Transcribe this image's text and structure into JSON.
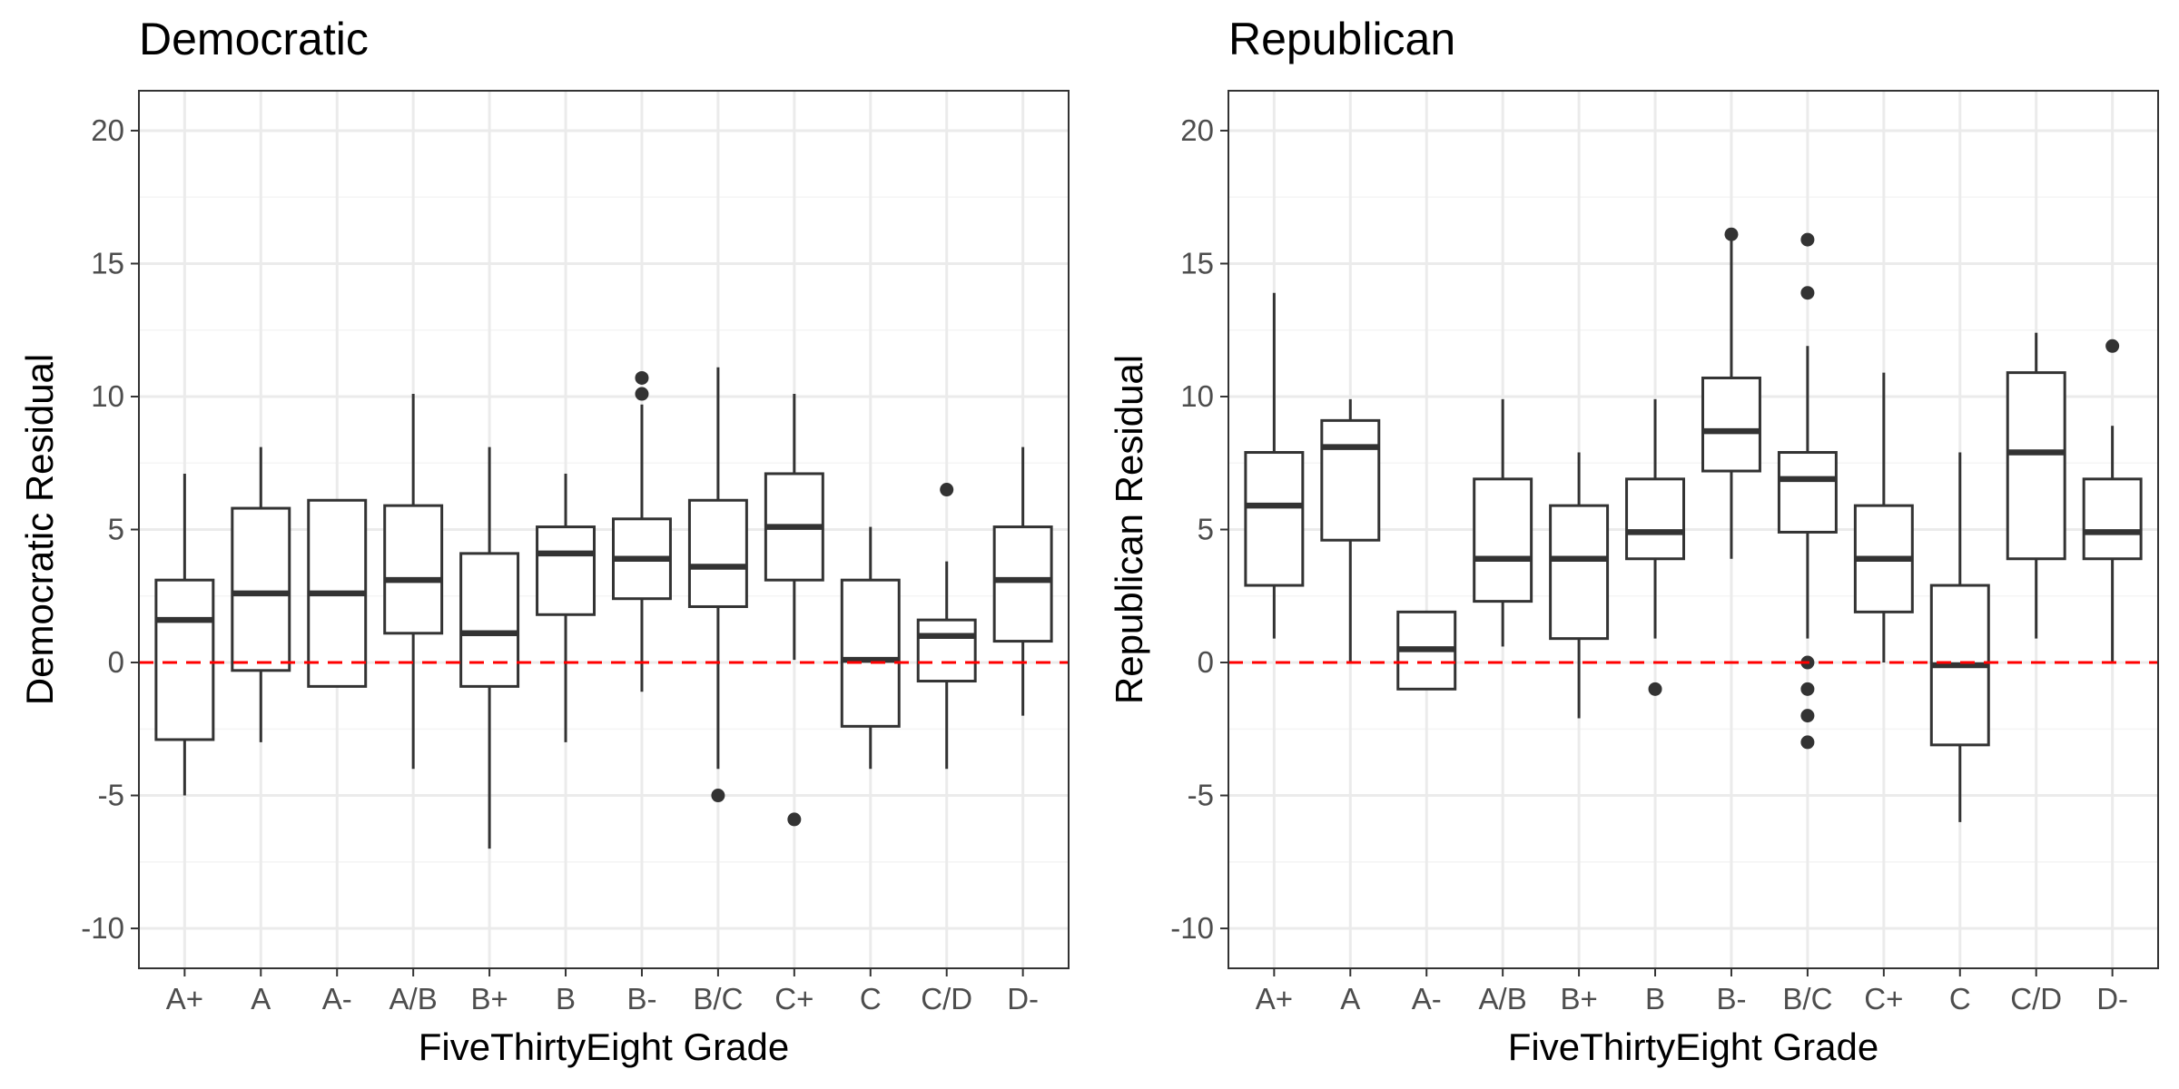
{
  "chart_data": [
    {
      "type": "boxplot",
      "title": "Democratic",
      "xlabel": "FiveThirtyEight Grade",
      "ylabel": "Democratic Residual",
      "ylim": [
        -11.5,
        21.5
      ],
      "yticks": [
        -10,
        -5,
        0,
        5,
        10,
        15,
        20
      ],
      "ytick_labels": [
        "-10",
        "-5",
        "0",
        "5",
        "10",
        "15",
        "20"
      ],
      "categories": [
        "A+",
        "A",
        "A-",
        "A/B",
        "B+",
        "B",
        "B-",
        "B/C",
        "C+",
        "C",
        "C/D",
        "D-"
      ],
      "reference_line": {
        "y": 0,
        "style": "dashed",
        "color": "#ff0000"
      },
      "grid": true,
      "boxes": [
        {
          "category": "A+",
          "whisker_low": -5,
          "q1": -2.9,
          "median": 1.6,
          "q3": 3.1,
          "whisker_high": 7.1,
          "outliers": []
        },
        {
          "category": "A",
          "whisker_low": -3,
          "q1": -0.3,
          "median": 2.6,
          "q3": 5.8,
          "whisker_high": 8.1,
          "outliers": []
        },
        {
          "category": "A-",
          "whisker_low": -0.9,
          "q1": -0.9,
          "median": 2.6,
          "q3": 6.1,
          "whisker_high": 6.1,
          "outliers": []
        },
        {
          "category": "A/B",
          "whisker_low": -4,
          "q1": 1.1,
          "median": 3.1,
          "q3": 5.9,
          "whisker_high": 10.1,
          "outliers": []
        },
        {
          "category": "B+",
          "whisker_low": -7,
          "q1": -0.9,
          "median": 1.1,
          "q3": 4.1,
          "whisker_high": 8.1,
          "outliers": []
        },
        {
          "category": "B",
          "whisker_low": -3,
          "q1": 1.8,
          "median": 4.1,
          "q3": 5.1,
          "whisker_high": 7.1,
          "outliers": []
        },
        {
          "category": "B-",
          "whisker_low": -1.1,
          "q1": 2.4,
          "median": 3.9,
          "q3": 5.4,
          "whisker_high": 9.7,
          "outliers": [
            10.1,
            10.7
          ]
        },
        {
          "category": "B/C",
          "whisker_low": -4,
          "q1": 2.1,
          "median": 3.6,
          "q3": 6.1,
          "whisker_high": 11.1,
          "outliers": [
            -5
          ]
        },
        {
          "category": "C+",
          "whisker_low": 0.1,
          "q1": 3.1,
          "median": 5.1,
          "q3": 7.1,
          "whisker_high": 10.1,
          "outliers": [
            -5.9
          ]
        },
        {
          "category": "C",
          "whisker_low": -4,
          "q1": -2.4,
          "median": 0.1,
          "q3": 3.1,
          "whisker_high": 5.1,
          "outliers": []
        },
        {
          "category": "C/D",
          "whisker_low": -4,
          "q1": -0.7,
          "median": 1.0,
          "q3": 1.6,
          "whisker_high": 3.8,
          "outliers": [
            6.5
          ]
        },
        {
          "category": "D-",
          "whisker_low": -2,
          "q1": 0.8,
          "median": 3.1,
          "q3": 5.1,
          "whisker_high": 8.1,
          "outliers": []
        }
      ]
    },
    {
      "type": "boxplot",
      "title": "Republican",
      "xlabel": "FiveThirtyEight Grade",
      "ylabel": "Republican Residual",
      "ylim": [
        -11.5,
        21.5
      ],
      "yticks": [
        -10,
        -5,
        0,
        5,
        10,
        15,
        20
      ],
      "ytick_labels": [
        "-10",
        "-5",
        "0",
        "5",
        "10",
        "15",
        "20"
      ],
      "categories": [
        "A+",
        "A",
        "A-",
        "A/B",
        "B+",
        "B",
        "B-",
        "B/C",
        "C+",
        "C",
        "C/D",
        "D-"
      ],
      "reference_line": {
        "y": 0,
        "style": "dashed",
        "color": "#ff0000"
      },
      "grid": true,
      "boxes": [
        {
          "category": "A+",
          "whisker_low": 0.9,
          "q1": 2.9,
          "median": 5.9,
          "q3": 7.9,
          "whisker_high": 13.9,
          "outliers": []
        },
        {
          "category": "A",
          "whisker_low": 0,
          "q1": 4.6,
          "median": 8.1,
          "q3": 9.1,
          "whisker_high": 9.9,
          "outliers": []
        },
        {
          "category": "A-",
          "whisker_low": -1,
          "q1": -1,
          "median": 0.5,
          "q3": 1.9,
          "whisker_high": 1.9,
          "outliers": []
        },
        {
          "category": "A/B",
          "whisker_low": 0.6,
          "q1": 2.3,
          "median": 3.9,
          "q3": 6.9,
          "whisker_high": 9.9,
          "outliers": []
        },
        {
          "category": "B+",
          "whisker_low": -2.1,
          "q1": 0.9,
          "median": 3.9,
          "q3": 5.9,
          "whisker_high": 7.9,
          "outliers": []
        },
        {
          "category": "B",
          "whisker_low": 0.9,
          "q1": 3.9,
          "median": 4.9,
          "q3": 6.9,
          "whisker_high": 9.9,
          "outliers": [
            -1
          ]
        },
        {
          "category": "B-",
          "whisker_low": 3.9,
          "q1": 7.2,
          "median": 8.7,
          "q3": 10.7,
          "whisker_high": 15.9,
          "outliers": [
            16.1
          ]
        },
        {
          "category": "B/C",
          "whisker_low": 0.9,
          "q1": 4.9,
          "median": 6.9,
          "q3": 7.9,
          "whisker_high": 11.9,
          "outliers": [
            13.9,
            15.9,
            0,
            -1,
            -2,
            -3
          ]
        },
        {
          "category": "C+",
          "whisker_low": 0,
          "q1": 1.9,
          "median": 3.9,
          "q3": 5.9,
          "whisker_high": 10.9,
          "outliers": []
        },
        {
          "category": "C",
          "whisker_low": -6,
          "q1": -3.1,
          "median": -0.1,
          "q3": 2.9,
          "whisker_high": 7.9,
          "outliers": []
        },
        {
          "category": "C/D",
          "whisker_low": 0.9,
          "q1": 3.9,
          "median": 7.9,
          "q3": 10.9,
          "whisker_high": 12.4,
          "outliers": []
        },
        {
          "category": "D-",
          "whisker_low": 0,
          "q1": 3.9,
          "median": 4.9,
          "q3": 6.9,
          "whisker_high": 8.9,
          "outliers": [
            11.9
          ]
        }
      ]
    }
  ],
  "colors": {
    "panel_border": "#333333",
    "grid_major": "#ebebeb",
    "grid_minor": "#f5f5f5",
    "box_stroke": "#333333",
    "box_fill": "#ffffff",
    "reference_line": "#ff0000",
    "tick_label": "#4d4d4d",
    "title": "#000000"
  }
}
